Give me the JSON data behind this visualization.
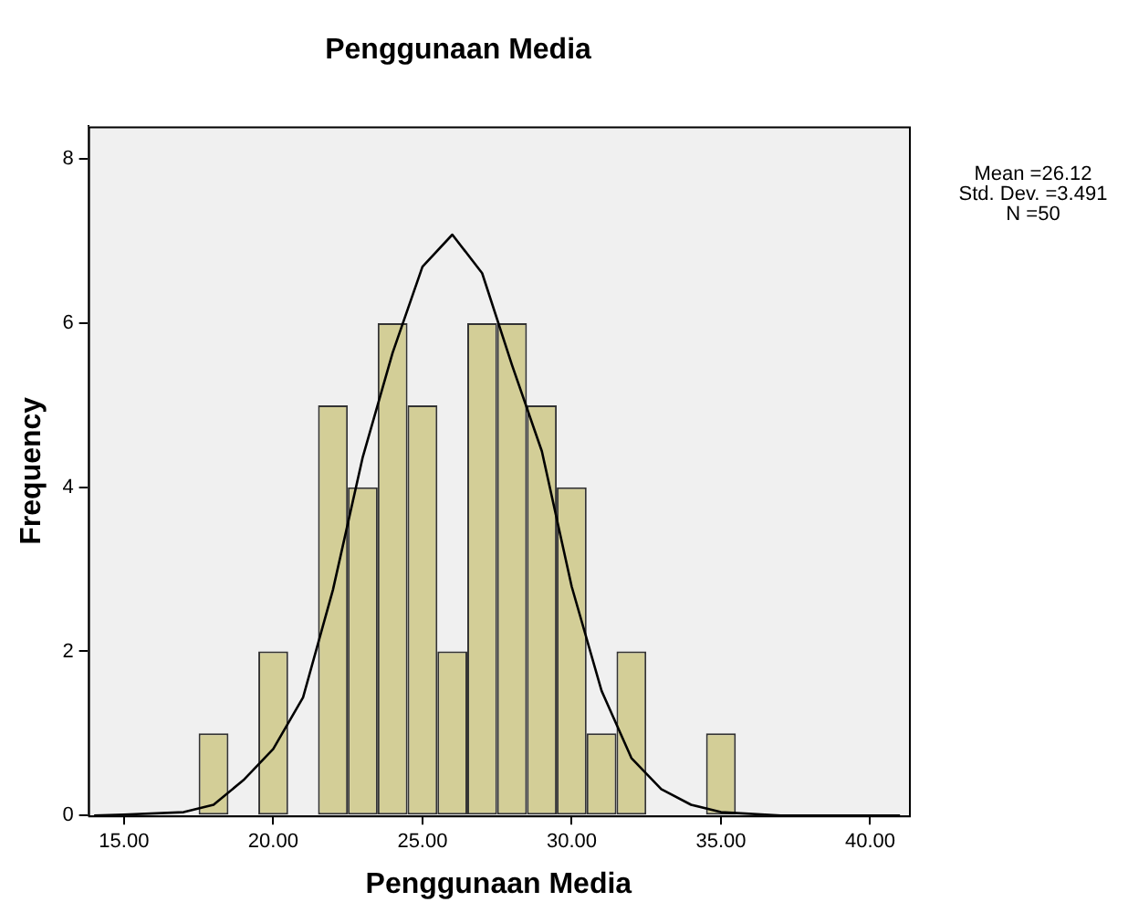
{
  "chart_data": {
    "type": "histogram",
    "title": "Penggunaan Media",
    "xlabel": "Penggunaan Media",
    "ylabel": "Frequency",
    "bins": [
      17.5,
      18.5,
      19.5,
      20.5,
      21.5,
      22.5,
      23.5,
      24.5,
      25.5,
      26.5,
      27.5,
      28.5,
      29.5,
      30.5,
      31.5,
      32.5,
      33.5,
      34.5,
      35.5
    ],
    "series": [
      {
        "type": "histogram",
        "color": "#d3ce97",
        "values": [
          1,
          0,
          2,
          0,
          5,
          4,
          6,
          5,
          2,
          6,
          6,
          5,
          4,
          1,
          2,
          0,
          0,
          1
        ]
      },
      {
        "type": "line",
        "color": "#000000",
        "x": [
          14,
          15,
          17,
          18,
          19,
          20,
          21,
          22,
          23,
          24,
          25,
          26,
          27,
          28,
          29,
          30,
          31,
          32,
          33,
          34,
          35,
          37,
          41
        ],
        "values": [
          0,
          0.01,
          0.04,
          0.13,
          0.43,
          0.81,
          1.44,
          2.75,
          4.37,
          5.64,
          6.69,
          7.08,
          6.61,
          5.49,
          4.44,
          2.79,
          1.52,
          0.7,
          0.32,
          0.13,
          0.04,
          0,
          0
        ]
      }
    ],
    "xlim": [
      13.8,
      41.3
    ],
    "ylim": [
      0,
      8.4
    ],
    "xticks": [
      {
        "value": 15,
        "label": "15.00"
      },
      {
        "value": 20,
        "label": "20.00"
      },
      {
        "value": 25,
        "label": "25.00"
      },
      {
        "value": 30,
        "label": "30.00"
      },
      {
        "value": 35,
        "label": "35.00"
      },
      {
        "value": 40,
        "label": "40.00"
      }
    ],
    "yticks": [
      0,
      2,
      4,
      6,
      8
    ],
    "marker": "none",
    "legend": false,
    "annotations": [
      "Mean =26.12",
      "Std. Dev. =3.491",
      "N =50"
    ]
  }
}
